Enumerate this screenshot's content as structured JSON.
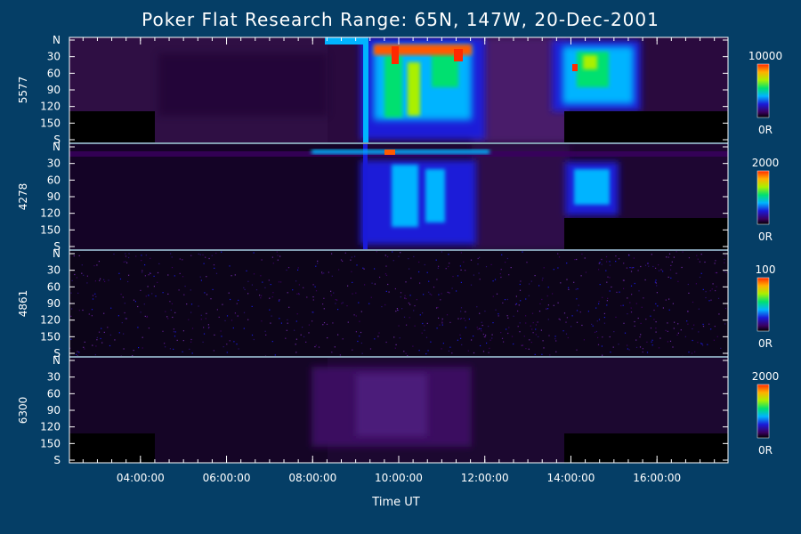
{
  "chart_data": {
    "type": "heatmap",
    "title": "Poker Flat Research Range: 65N, 147W, 20-Dec-2001",
    "xlabel": "Time UT",
    "x_ticks": [
      "04:00:00",
      "06:00:00",
      "08:00:00",
      "10:00:00",
      "12:00:00",
      "14:00:00",
      "16:00:00"
    ],
    "xlim_hours": [
      2.35,
      17.65
    ],
    "y_ticks": [
      "N",
      "30",
      "60",
      "90",
      "120",
      "150",
      "S"
    ],
    "panels": [
      {
        "label": "5577",
        "cbar_max": "10000",
        "cbar_min": "0R"
      },
      {
        "label": "4278",
        "cbar_max": "2000",
        "cbar_min": "0R"
      },
      {
        "label": "4861",
        "cbar_max": "100",
        "cbar_min": "0R"
      },
      {
        "label": "6300",
        "cbar_max": "2000",
        "cbar_min": "0R"
      }
    ]
  }
}
